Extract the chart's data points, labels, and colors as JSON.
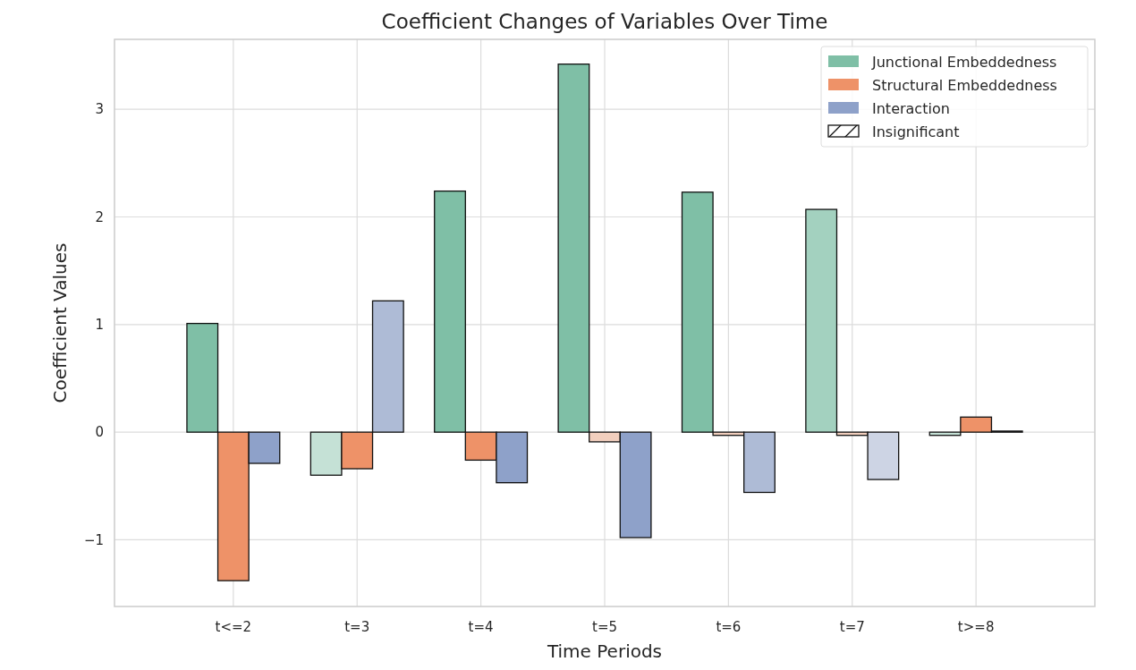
{
  "chart_data": {
    "type": "bar",
    "title": "Coefficient Changes of Variables Over Time",
    "xlabel": "Time Periods",
    "ylabel": "Coefficient Values",
    "categories": [
      "t<=2",
      "t=3",
      "t=4",
      "t=5",
      "t=6",
      "t=7",
      "t>=8"
    ],
    "series": [
      {
        "name": "Junctional Embeddedness",
        "color": "#7fbfa6",
        "values": [
          1.01,
          -0.4,
          2.24,
          3.42,
          2.23,
          2.07,
          -0.03
        ],
        "colors": [
          "#7fbfa6",
          "#c5e1d6",
          "#7fbfa6",
          "#7fbfa6",
          "#7fbfa6",
          "#a3d1bf",
          "#c5e1d6"
        ]
      },
      {
        "name": "Structural Embeddedness",
        "color": "#ee9268",
        "values": [
          -1.38,
          -0.34,
          -0.26,
          -0.09,
          -0.03,
          -0.03,
          0.14
        ],
        "colors": [
          "#ee9268",
          "#ee9268",
          "#ee9268",
          "#f2cfbe",
          "#f2cfbe",
          "#f2cfbe",
          "#ee9268"
        ]
      },
      {
        "name": "Interaction",
        "color": "#8ea1c9",
        "values": [
          -0.29,
          1.22,
          -0.47,
          -0.98,
          -0.56,
          -0.44,
          0.01
        ],
        "colors": [
          "#8ea1c9",
          "#aebbd6",
          "#8ea1c9",
          "#8ea1c9",
          "#aebbd6",
          "#cdd4e4",
          "#8ea1c9"
        ]
      }
    ],
    "annotations": [
      "Insignificant"
    ],
    "ylim": [
      -1.62,
      3.65
    ],
    "yticks": [
      {
        "value": -1,
        "label": "−1"
      },
      0,
      1,
      2,
      3
    ],
    "grid": true,
    "legend": "top right"
  }
}
